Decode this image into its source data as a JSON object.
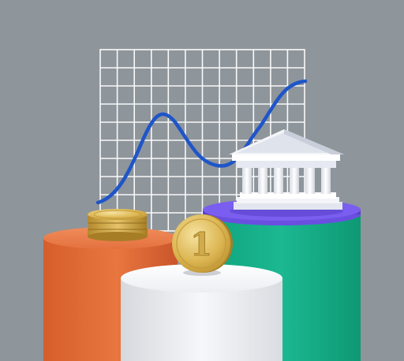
{
  "scene": {
    "background_color": "#8e959b",
    "coin_numeral": "1",
    "colors": {
      "grid_lines": "#ffffff",
      "curve": "#1f55c8",
      "pillar_left": "#e06c3a",
      "pillar_front": "#f3f4f6",
      "pillar_right": "#16b08a",
      "pillar_right_ring": "#6a4fe0",
      "bank_building": "#f2f3f7",
      "coins": "#d8b24a"
    },
    "objects": [
      "grid-chart-board",
      "rising-curve-line",
      "orange-cylinder-pedestal",
      "white-cylinder-pedestal",
      "green-cylinder-pedestal",
      "bank-building-icon",
      "coin-stack",
      "standing-coin"
    ]
  }
}
